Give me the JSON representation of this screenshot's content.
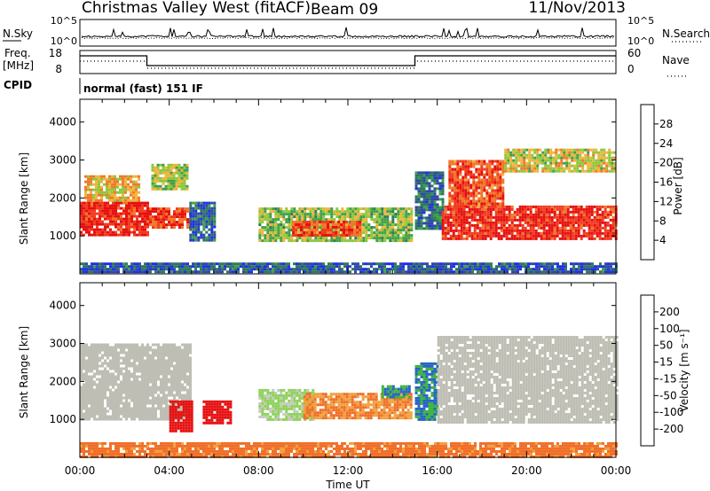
{
  "header": {
    "title": "Christmas Valley West (fitACF)",
    "beam": "Beam 09",
    "date": "11/Nov/2013"
  },
  "info_panels": {
    "nsky_label": "N.Sky",
    "nsky_ticks": [
      "10^5",
      "10^0"
    ],
    "nsearch_label": "N.Search",
    "nsearch_ticks": [
      "10^5",
      "10^0"
    ],
    "freq_label": "Freq.",
    "freq_unit": "[MHz]",
    "freq_ticks": [
      "18",
      "8"
    ],
    "nave_label": "Nave",
    "nave_ticks": [
      "60",
      "0"
    ],
    "cpid_label": "CPID",
    "cpid_value": "normal (fast) 151 IF"
  },
  "colors": {
    "power_scale": [
      "#1f2fe6",
      "#2f4aa8",
      "#2e7a5a",
      "#3fa04a",
      "#8cc83c",
      "#f0b43c",
      "#f07828",
      "#f03c1e",
      "#e60f0f"
    ],
    "velocity_scale": [
      "#1e3cb4",
      "#2864c8",
      "#3cb43c",
      "#8cd25a",
      "#c8c8be",
      "#c8c8be",
      "#f0a03c",
      "#f06e28",
      "#e63c1e",
      "#e60f0f"
    ],
    "ground_scatter": "#bebeb4"
  },
  "chart_data": [
    {
      "type": "heatmap",
      "panel": "power",
      "xlabel": "Time UT",
      "ylabel": "Slant Range [km]",
      "xlim": [
        0,
        24
      ],
      "ylim": [
        0,
        4600
      ],
      "x_tick_labels": [
        "00:00",
        "04:00",
        "08:00",
        "12:00",
        "16:00",
        "20:00",
        "00:00"
      ],
      "y_ticks": [
        1000,
        2000,
        3000,
        4000
      ],
      "colorbar_label": "Power [dB]",
      "colorbar_ticks": [
        "28",
        "24",
        "20",
        "16",
        "12",
        "8",
        "4"
      ],
      "colorbar_range": [
        0,
        32
      ],
      "regions": [
        {
          "x": [
            0,
            3.0
          ],
          "range": [
            1000,
            1900
          ],
          "value": 29
        },
        {
          "x": [
            0.2,
            2.6
          ],
          "range": [
            1900,
            2600
          ],
          "value": 20
        },
        {
          "x": [
            3.1,
            4.9
          ],
          "range": [
            1250,
            1750
          ],
          "value": 27
        },
        {
          "x": [
            3.2,
            4.8
          ],
          "range": [
            2200,
            2900
          ],
          "value": 16
        },
        {
          "x": [
            4.9,
            6.0
          ],
          "range": [
            850,
            1900
          ],
          "value": 7
        },
        {
          "x": [
            8.0,
            14.8
          ],
          "range": [
            900,
            1750
          ],
          "value": 15
        },
        {
          "x": [
            9.5,
            12.5
          ],
          "range": [
            1000,
            1400
          ],
          "value": 26
        },
        {
          "x": [
            15.0,
            16.2
          ],
          "range": [
            1200,
            2700
          ],
          "value": 8
        },
        {
          "x": [
            16.2,
            24.0
          ],
          "range": [
            900,
            1800
          ],
          "value": 29
        },
        {
          "x": [
            16.5,
            19.0
          ],
          "range": [
            1800,
            3000
          ],
          "value": 26
        },
        {
          "x": [
            19.0,
            24.0
          ],
          "range": [
            2700,
            3300
          ],
          "value": 18
        },
        {
          "x": [
            0,
            24.0
          ],
          "range": [
            30,
            300
          ],
          "value": 6
        }
      ]
    },
    {
      "type": "heatmap",
      "panel": "velocity",
      "xlabel": "Time UT",
      "ylabel": "Slant Range [km]",
      "xlim": [
        0,
        24
      ],
      "ylim": [
        0,
        4600
      ],
      "x_tick_labels": [
        "00:00",
        "04:00",
        "08:00",
        "12:00",
        "16:00",
        "20:00",
        "00:00"
      ],
      "y_ticks": [
        1000,
        2000,
        3000,
        4000
      ],
      "colorbar_label": "Velocity [m s⁻¹]",
      "colorbar_ticks": [
        "200",
        "100",
        "50",
        "15",
        "-15",
        "-50",
        "-100",
        "-200"
      ],
      "colorbar_range": [
        -250,
        250
      ],
      "regions": [
        {
          "x": [
            0,
            4.9
          ],
          "range": [
            1000,
            3000
          ],
          "value": 0
        },
        {
          "x": [
            4.0,
            5.0
          ],
          "range": [
            700,
            1500
          ],
          "value": -230
        },
        {
          "x": [
            5.5,
            6.8
          ],
          "range": [
            900,
            1500
          ],
          "value": -230
        },
        {
          "x": [
            8.0,
            10.5
          ],
          "range": [
            1000,
            1800
          ],
          "value": 60
        },
        {
          "x": [
            10.0,
            14.8
          ],
          "range": [
            1000,
            1700
          ],
          "value": -100
        },
        {
          "x": [
            13.5,
            14.8
          ],
          "range": [
            1600,
            1900
          ],
          "value": 150
        },
        {
          "x": [
            15.0,
            16.0
          ],
          "range": [
            1000,
            2500
          ],
          "value": 150
        },
        {
          "x": [
            16.0,
            24.0
          ],
          "range": [
            900,
            3200
          ],
          "value": 0
        },
        {
          "x": [
            0,
            24.0
          ],
          "range": [
            30,
            400
          ],
          "value": -120
        }
      ]
    }
  ]
}
